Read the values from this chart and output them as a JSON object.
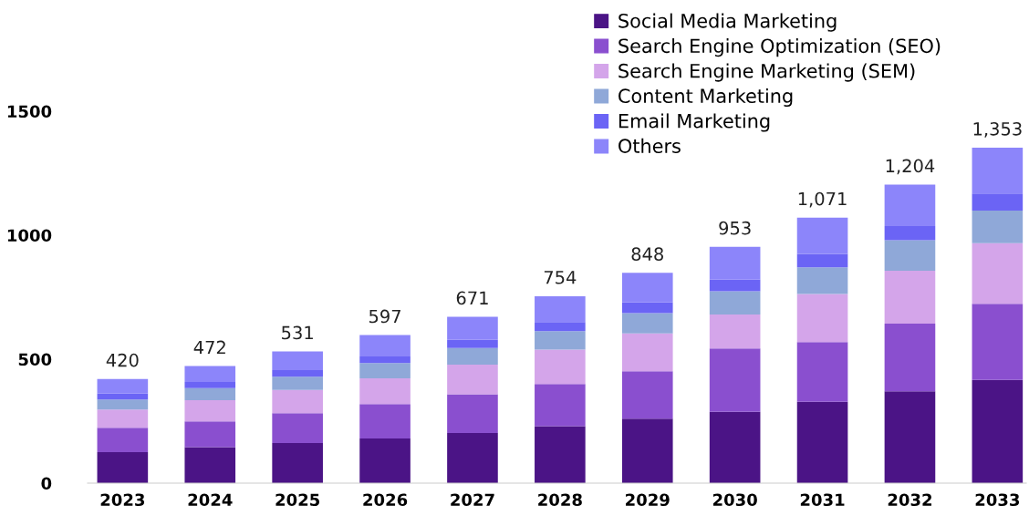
{
  "chart_data": {
    "type": "bar",
    "stacked": true,
    "categories": [
      "2023",
      "2024",
      "2025",
      "2026",
      "2027",
      "2028",
      "2029",
      "2030",
      "2031",
      "2032",
      "2033"
    ],
    "series": [
      {
        "name": "Social Media Marketing",
        "color": "#4b1486",
        "values": [
          125,
          145,
          162,
          180,
          202,
          230,
          260,
          288,
          328,
          370,
          416
        ]
      },
      {
        "name": "Search Engine Optimization (SEO)",
        "color": "#8a4fcf",
        "values": [
          98,
          104,
          120,
          139,
          156,
          170,
          191,
          255,
          241,
          273,
          307
        ]
      },
      {
        "name": "Search Engine Marketing (SEM)",
        "color": "#d4a5ea",
        "values": [
          74,
          86,
          94,
          104,
          120,
          139,
          153,
          137,
          194,
          214,
          245
        ]
      },
      {
        "name": "Content Marketing",
        "color": "#8fa8d8",
        "values": [
          40,
          48,
          53,
          61,
          67,
          74,
          82,
          94,
          107,
          123,
          131
        ]
      },
      {
        "name": "Email Marketing",
        "color": "#6b64f5",
        "values": [
          24,
          25,
          27,
          27,
          33,
          37,
          43,
          47,
          55,
          57,
          69
        ]
      },
      {
        "name": "Others",
        "color": "#8c85fa",
        "values": [
          59,
          64,
          75,
          86,
          93,
          104,
          119,
          132,
          146,
          167,
          185
        ]
      }
    ],
    "totals": [
      "420",
      "472",
      "531",
      "597",
      "671",
      "754",
      "848",
      "953",
      "1,071",
      "1,204",
      "1,353"
    ],
    "ylim": [
      0,
      1500
    ],
    "yticks": [
      0,
      500,
      1000,
      1500
    ],
    "grid": false,
    "legend": "top"
  }
}
